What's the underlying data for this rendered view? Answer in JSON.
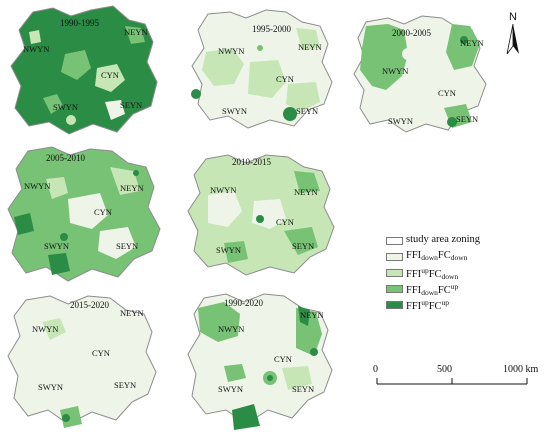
{
  "panels": [
    {
      "id": "p1990_1995",
      "title": "1990-1995",
      "regions": [
        "NWYN",
        "NEYN",
        "CYN",
        "SWYN",
        "SEYN"
      ]
    },
    {
      "id": "p1995_2000",
      "title": "1995-2000",
      "regions": [
        "NWYN",
        "NEYN",
        "CYN",
        "SWYN",
        "SEYN"
      ]
    },
    {
      "id": "p2000_2005",
      "title": "2000-2005",
      "regions": [
        "NWYN",
        "NEYN",
        "CYN",
        "SWYN",
        "SEYN"
      ]
    },
    {
      "id": "p2005_2010",
      "title": "2005-2010",
      "regions": [
        "NWYN",
        "NEYN",
        "CYN",
        "SWYN",
        "SEYN"
      ]
    },
    {
      "id": "p2010_2015",
      "title": "2010-2015",
      "regions": [
        "NWYN",
        "NEYN",
        "CYN",
        "SWYN",
        "SEYN"
      ]
    },
    {
      "id": "p2015_2020",
      "title": "2015-2020",
      "regions": [
        "NWYN",
        "NEYN",
        "CYN",
        "SWYN",
        "SEYN"
      ]
    },
    {
      "id": "p1990_2020",
      "title": "1990-2020",
      "regions": [
        "NWYN",
        "NEYN",
        "CYN",
        "SWYN",
        "SEYN"
      ]
    }
  ],
  "legend": {
    "items": [
      {
        "label": "study area zoning",
        "color": "#ffffff"
      },
      {
        "base": "FFI",
        "s1": "down",
        "s1_type": "sub",
        "mid": "FC",
        "s2": "down",
        "s2_type": "sub",
        "color": "#eef5e8"
      },
      {
        "base": "FFI",
        "s1": "up",
        "s1_type": "sup",
        "mid": "FC",
        "s2": "down",
        "s2_type": "sub",
        "color": "#c6e6b5"
      },
      {
        "base": "FFI",
        "s1": "down",
        "s1_type": "sub",
        "mid": "FC",
        "s2": "up",
        "s2_type": "sup",
        "color": "#77c274"
      },
      {
        "base": "FFI",
        "s1": "up",
        "s1_type": "sup",
        "mid": "FC",
        "s2": "up",
        "s2_type": "sup",
        "color": "#2b8c45"
      }
    ]
  },
  "north_arrow": {
    "letter": "N"
  },
  "scalebar": {
    "labels": [
      "0",
      "500",
      "1000 km"
    ]
  },
  "colors": {
    "study_area": "#ffffff",
    "cls1": "#eef5e8",
    "cls2": "#c6e6b5",
    "cls3": "#77c274",
    "cls4": "#2b8c45",
    "border": "#8c8c8c"
  }
}
